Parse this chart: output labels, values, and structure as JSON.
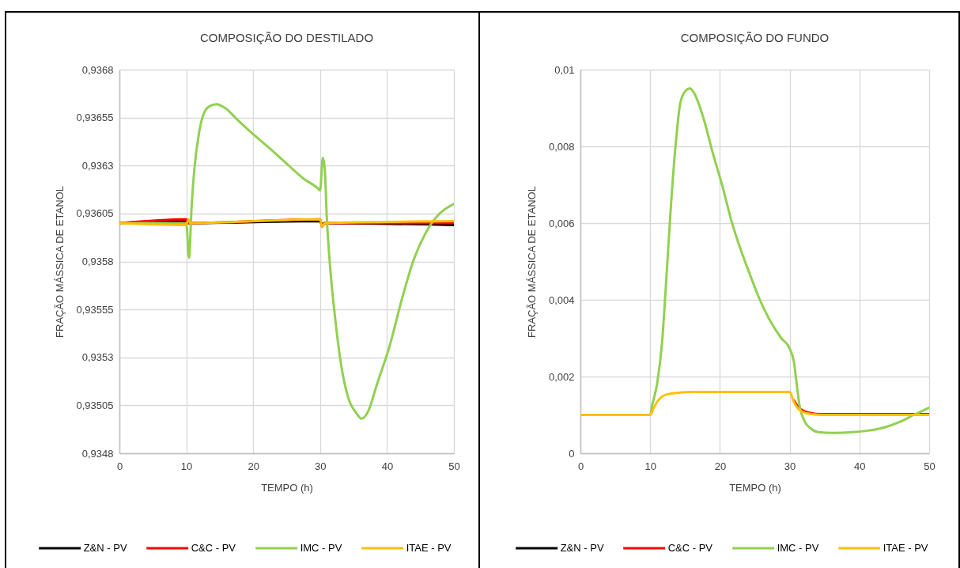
{
  "chart_data": [
    {
      "type": "line",
      "title": "COMPOSIÇÃO DO DESTILADO",
      "xlabel": "TEMPO (h)",
      "ylabel": "FRAÇÃO MÁSSICA DE ETANOL",
      "xlim": [
        0,
        50
      ],
      "xticks": [
        0,
        10,
        20,
        30,
        40,
        50
      ],
      "ylim": [
        0.9348,
        0.9368
      ],
      "yticks": [
        {
          "value": 0.9348,
          "label": "0,9348"
        },
        {
          "value": 0.93505,
          "label": "0,93505"
        },
        {
          "value": 0.9353,
          "label": "0,9353"
        },
        {
          "value": 0.93555,
          "label": "0,93555"
        },
        {
          "value": 0.9358,
          "label": "0,9358"
        },
        {
          "value": 0.93605,
          "label": "0,93605"
        },
        {
          "value": 0.9363,
          "label": "0,9363"
        },
        {
          "value": 0.93655,
          "label": "0,93655"
        },
        {
          "value": 0.9368,
          "label": "0,9368"
        }
      ],
      "grid": true,
      "legend": "bottom",
      "series": [
        {
          "name": "Z&N - PV",
          "color": "#000000",
          "x": [
            0,
            10,
            10.3,
            30,
            30.3,
            30.6,
            50
          ],
          "values": [
            0.936,
            0.93601,
            0.936,
            0.93601,
            0.93599,
            0.936,
            0.93599
          ]
        },
        {
          "name": "C&C - PV",
          "color": "#ff0000",
          "x": [
            0,
            10,
            10.4,
            30,
            30.3,
            30.7,
            50
          ],
          "values": [
            0.936,
            0.93602,
            0.936,
            0.93602,
            0.93598,
            0.936,
            0.936
          ]
        },
        {
          "name": "IMC - PV",
          "color": "#92d050",
          "x": [
            0,
            10,
            10.4,
            10.8,
            11.2,
            11.9,
            12.6,
            13.5,
            14.5,
            15.8,
            17.6,
            20.1,
            23.1,
            25.3,
            27.6,
            29.7,
            30,
            30.4,
            30.7,
            31,
            31.5,
            32.2,
            33.1,
            34.2,
            35.4,
            36.2,
            37.2,
            38.5,
            40.4,
            42.2,
            44,
            45.8,
            47.6,
            49,
            50
          ],
          "values": [
            0.936,
            0.936,
            0.93582,
            0.93609,
            0.93628,
            0.93647,
            0.93657,
            0.93661,
            0.93662,
            0.9366,
            0.93654,
            0.93646,
            0.93637,
            0.9363,
            0.93623,
            0.93618,
            0.93617,
            0.93634,
            0.93628,
            0.93603,
            0.93577,
            0.93552,
            0.93527,
            0.93509,
            0.93501,
            0.93498,
            0.93502,
            0.93516,
            0.93536,
            0.9356,
            0.93581,
            0.93595,
            0.93604,
            0.93608,
            0.9361
          ]
        },
        {
          "name": "ITAE - PV",
          "color": "#ffc000",
          "x": [
            0,
            10,
            10.3,
            10.6,
            30,
            30.3,
            30.7,
            50
          ],
          "values": [
            0.936,
            0.93599,
            0.93602,
            0.936,
            0.93602,
            0.93598,
            0.936,
            0.93601
          ]
        }
      ]
    },
    {
      "type": "line",
      "title": "COMPOSIÇÃO DO FUNDO",
      "xlabel": "TEMPO (h)",
      "ylabel": "FRAÇÃO MÁSSICA DE ETANOL",
      "xlim": [
        0,
        50
      ],
      "xticks": [
        0,
        10,
        20,
        30,
        40,
        50
      ],
      "ylim": [
        0,
        0.01
      ],
      "yticks": [
        0,
        {
          "value": 0.002,
          "label": "0,002"
        },
        {
          "value": 0.004,
          "label": "0,004"
        },
        {
          "value": 0.006,
          "label": "0,006"
        },
        {
          "value": 0.008,
          "label": "0,008"
        },
        {
          "value": 0.01,
          "label": "0,01"
        }
      ],
      "grid": true,
      "legend": "bottom",
      "series": [
        {
          "name": "Z&N - PV",
          "color": "#000000"
        },
        {
          "name": "C&C - PV",
          "color": "#ff0000",
          "x": [
            30.6,
            31.4,
            32.8,
            34.6,
            50
          ],
          "values": [
            0.00138,
            0.00117,
            0.00106,
            0.00102,
            0.00102
          ]
        },
        {
          "name": "IMC - PV",
          "color": "#92d050",
          "x": [
            0,
            10,
            10.3,
            11,
            11.7,
            12.3,
            13,
            13.7,
            14.3,
            15,
            15.7,
            16.3,
            17.7,
            19,
            20.3,
            21.7,
            23,
            24.3,
            25.7,
            27,
            28.8,
            30,
            30.6,
            31,
            31.4,
            32.1,
            33,
            34.1,
            36.3,
            39,
            41.2,
            43.5,
            45.7,
            47.9,
            50
          ],
          "values": [
            0.001,
            0.001,
            0.00126,
            0.00182,
            0.00288,
            0.0045,
            0.00652,
            0.00814,
            0.00911,
            0.00943,
            0.00951,
            0.00939,
            0.0087,
            0.00781,
            0.007,
            0.00603,
            0.0053,
            0.00466,
            0.00401,
            0.00352,
            0.003,
            0.00273,
            0.00239,
            0.00182,
            0.00126,
            0.00085,
            0.00065,
            0.00055,
            0.00053,
            0.00055,
            0.00059,
            0.00067,
            0.00081,
            0.00101,
            0.00119
          ]
        },
        {
          "name": "ITAE - PV",
          "color": "#ffc000",
          "x": [
            0,
            10,
            10.5,
            11,
            11.9,
            13.2,
            15.9,
            30,
            30.6,
            31.4,
            32.8,
            34.6,
            50
          ],
          "values": [
            0.001,
            0.001,
            0.00118,
            0.00134,
            0.0015,
            0.00156,
            0.0016,
            0.0016,
            0.00134,
            0.00113,
            0.00103,
            0.001,
            0.001
          ]
        }
      ]
    }
  ]
}
